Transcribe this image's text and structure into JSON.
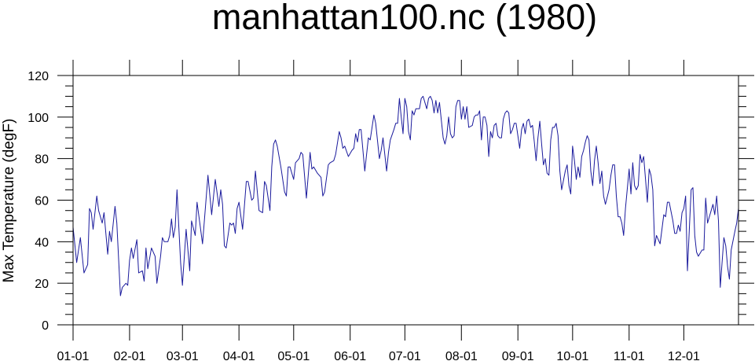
{
  "chart_data": {
    "type": "line",
    "title": "manhattan100.nc (1980)",
    "xlabel": "",
    "ylabel": "Max Temperature (degF)",
    "ylim": [
      0,
      120
    ],
    "yticks": [
      "0",
      "20",
      "40",
      "60",
      "80",
      "100",
      "120"
    ],
    "y_minor_step": 5,
    "xlim": [
      "1980-01-01",
      "1980-12-31"
    ],
    "xticks": [
      "01-01",
      "02-01",
      "03-01",
      "04-01",
      "05-01",
      "06-01",
      "07-01",
      "08-01",
      "09-01",
      "10-01",
      "11-01",
      "12-01"
    ],
    "grid": false,
    "line_color": "#1a1a9c",
    "series": [
      {
        "points": [
          [
            "01-01",
            47
          ],
          [
            "01-03",
            30
          ],
          [
            "01-05",
            42
          ],
          [
            "01-07",
            25
          ],
          [
            "01-09",
            29
          ],
          [
            "01-10",
            56
          ],
          [
            "01-11",
            54
          ],
          [
            "01-12",
            46
          ],
          [
            "01-14",
            62
          ],
          [
            "01-15",
            55
          ],
          [
            "01-17",
            49
          ],
          [
            "01-18",
            54
          ],
          [
            "01-20",
            34
          ],
          [
            "01-21",
            45
          ],
          [
            "01-22",
            40
          ],
          [
            "01-24",
            57
          ],
          [
            "01-25",
            49
          ],
          [
            "01-27",
            14
          ],
          [
            "01-28",
            18
          ],
          [
            "01-30",
            20
          ],
          [
            "01-31",
            19
          ],
          [
            "02-01",
            31
          ],
          [
            "02-02",
            37
          ],
          [
            "02-03",
            32
          ],
          [
            "02-05",
            41
          ],
          [
            "02-06",
            25
          ],
          [
            "02-08",
            26
          ],
          [
            "02-09",
            21
          ],
          [
            "02-10",
            37
          ],
          [
            "02-11",
            27
          ],
          [
            "02-13",
            37
          ],
          [
            "02-15",
            33
          ],
          [
            "02-16",
            20
          ],
          [
            "02-18",
            33
          ],
          [
            "02-19",
            42
          ],
          [
            "02-20",
            40
          ],
          [
            "02-22",
            40
          ],
          [
            "02-23",
            43
          ],
          [
            "02-24",
            51
          ],
          [
            "02-25",
            42
          ],
          [
            "02-26",
            47
          ],
          [
            "02-27",
            65
          ],
          [
            "02-28",
            47
          ],
          [
            "02-29",
            30
          ],
          [
            "03-01",
            19
          ],
          [
            "03-03",
            46
          ],
          [
            "03-05",
            26
          ],
          [
            "03-06",
            50
          ],
          [
            "03-08",
            43
          ],
          [
            "03-09",
            59
          ],
          [
            "03-12",
            39
          ],
          [
            "03-15",
            72
          ],
          [
            "03-17",
            53
          ],
          [
            "03-19",
            70
          ],
          [
            "03-21",
            57
          ],
          [
            "03-22",
            65
          ],
          [
            "03-23",
            58
          ],
          [
            "03-24",
            38
          ],
          [
            "03-25",
            37
          ],
          [
            "03-27",
            49
          ],
          [
            "03-28",
            48
          ],
          [
            "03-29",
            49
          ],
          [
            "03-30",
            44
          ],
          [
            "03-31",
            56
          ],
          [
            "04-01",
            59
          ],
          [
            "04-03",
            46
          ],
          [
            "04-05",
            69
          ],
          [
            "04-06",
            69
          ],
          [
            "04-08",
            60
          ],
          [
            "04-09",
            61
          ],
          [
            "04-10",
            74
          ],
          [
            "04-12",
            55
          ],
          [
            "04-14",
            54
          ],
          [
            "04-15",
            69
          ],
          [
            "04-16",
            67
          ],
          [
            "04-18",
            55
          ],
          [
            "04-19",
            76
          ],
          [
            "04-20",
            87
          ],
          [
            "04-21",
            89
          ],
          [
            "04-22",
            86
          ],
          [
            "04-24",
            76
          ],
          [
            "04-26",
            64
          ],
          [
            "04-27",
            62
          ],
          [
            "04-28",
            76
          ],
          [
            "04-29",
            76
          ],
          [
            "05-01",
            70
          ],
          [
            "05-02",
            78
          ],
          [
            "05-04",
            80
          ],
          [
            "05-05",
            83
          ],
          [
            "05-06",
            82
          ],
          [
            "05-08",
            61
          ],
          [
            "05-10",
            83
          ],
          [
            "05-11",
            75
          ],
          [
            "05-12",
            76
          ],
          [
            "05-14",
            73
          ],
          [
            "05-16",
            71
          ],
          [
            "05-17",
            62
          ],
          [
            "05-18",
            64
          ],
          [
            "05-20",
            77
          ],
          [
            "05-21",
            78
          ],
          [
            "05-23",
            79
          ],
          [
            "05-24",
            82
          ],
          [
            "05-26",
            93
          ],
          [
            "05-27",
            90
          ],
          [
            "05-28",
            85
          ],
          [
            "05-29",
            86
          ],
          [
            "05-31",
            81
          ],
          [
            "06-02",
            84
          ],
          [
            "06-03",
            85
          ],
          [
            "06-04",
            92
          ],
          [
            "06-05",
            88
          ],
          [
            "06-06",
            94
          ],
          [
            "06-07",
            94
          ],
          [
            "06-09",
            74
          ],
          [
            "06-10",
            82
          ],
          [
            "06-11",
            90
          ],
          [
            "06-12",
            89
          ],
          [
            "06-14",
            101
          ],
          [
            "06-15",
            97
          ],
          [
            "06-17",
            80
          ],
          [
            "06-18",
            84
          ],
          [
            "06-19",
            90
          ],
          [
            "06-21",
            74
          ],
          [
            "06-22",
            83
          ],
          [
            "06-23",
            89
          ],
          [
            "06-25",
            94
          ],
          [
            "06-26",
            97
          ],
          [
            "06-27",
            97
          ],
          [
            "06-28",
            109
          ],
          [
            "06-29",
            100
          ],
          [
            "06-30",
            92
          ],
          [
            "07-01",
            109
          ],
          [
            "07-02",
            105
          ],
          [
            "07-03",
            93
          ],
          [
            "07-04",
            89
          ],
          [
            "07-05",
            103
          ],
          [
            "07-06",
            101
          ],
          [
            "07-07",
            104
          ],
          [
            "07-09",
            104
          ],
          [
            "07-10",
            109
          ],
          [
            "07-11",
            110
          ],
          [
            "07-13",
            104
          ],
          [
            "07-14",
            109
          ],
          [
            "07-15",
            110
          ],
          [
            "07-16",
            108
          ],
          [
            "07-17",
            102
          ],
          [
            "07-18",
            108
          ],
          [
            "07-19",
            102
          ],
          [
            "07-20",
            107
          ],
          [
            "07-22",
            90
          ],
          [
            "07-23",
            87
          ],
          [
            "07-24",
            91
          ],
          [
            "07-25",
            100
          ],
          [
            "07-26",
            92
          ],
          [
            "07-27",
            90
          ],
          [
            "07-28",
            91
          ],
          [
            "07-29",
            105
          ],
          [
            "07-30",
            108
          ],
          [
            "07-31",
            108
          ],
          [
            "08-01",
            99
          ],
          [
            "08-02",
            105
          ],
          [
            "08-03",
            99
          ],
          [
            "08-04",
            105
          ],
          [
            "08-05",
            95
          ],
          [
            "08-07",
            96
          ],
          [
            "08-08",
            100
          ],
          [
            "08-09",
            101
          ],
          [
            "08-10",
            101
          ],
          [
            "08-11",
            103
          ],
          [
            "08-12",
            89
          ],
          [
            "08-13",
            100
          ],
          [
            "08-14",
            100
          ],
          [
            "08-15",
            96
          ],
          [
            "08-16",
            81
          ],
          [
            "08-17",
            93
          ],
          [
            "08-18",
            90
          ],
          [
            "08-19",
            96
          ],
          [
            "08-20",
            97
          ],
          [
            "08-21",
            91
          ],
          [
            "08-22",
            90
          ],
          [
            "08-23",
            90
          ],
          [
            "08-24",
            99
          ],
          [
            "08-25",
            102
          ],
          [
            "08-26",
            103
          ],
          [
            "08-27",
            102
          ],
          [
            "08-28",
            92
          ],
          [
            "08-29",
            94
          ],
          [
            "08-30",
            97
          ],
          [
            "08-31",
            97
          ],
          [
            "09-02",
            85
          ],
          [
            "09-03",
            94
          ],
          [
            "09-04",
            97
          ],
          [
            "09-05",
            92
          ],
          [
            "09-06",
            98
          ],
          [
            "09-07",
            99
          ],
          [
            "09-08",
            95
          ],
          [
            "09-09",
            96
          ],
          [
            "09-10",
            88
          ],
          [
            "09-11",
            79
          ],
          [
            "09-12",
            90
          ],
          [
            "09-13",
            98
          ],
          [
            "09-14",
            87
          ],
          [
            "09-15",
            77
          ],
          [
            "09-16",
            80
          ],
          [
            "09-17",
            73
          ],
          [
            "09-18",
            72
          ],
          [
            "09-19",
            89
          ],
          [
            "09-20",
            95
          ],
          [
            "09-21",
            95
          ],
          [
            "09-22",
            97
          ],
          [
            "09-23",
            91
          ],
          [
            "09-24",
            74
          ],
          [
            "09-25",
            65
          ],
          [
            "09-27",
            74
          ],
          [
            "09-28",
            77
          ],
          [
            "09-29",
            67
          ],
          [
            "09-30",
            63
          ],
          [
            "10-01",
            86
          ],
          [
            "10-02",
            79
          ],
          [
            "10-03",
            70
          ],
          [
            "10-04",
            76
          ],
          [
            "10-05",
            71
          ],
          [
            "10-06",
            81
          ],
          [
            "10-07",
            84
          ],
          [
            "10-08",
            88
          ],
          [
            "10-09",
            91
          ],
          [
            "10-10",
            89
          ],
          [
            "10-11",
            74
          ],
          [
            "10-12",
            67
          ],
          [
            "10-13",
            79
          ],
          [
            "10-14",
            86
          ],
          [
            "10-15",
            78
          ],
          [
            "10-16",
            68
          ],
          [
            "10-17",
            74
          ],
          [
            "10-18",
            62
          ],
          [
            "10-19",
            58
          ],
          [
            "10-21",
            65
          ],
          [
            "10-22",
            72
          ],
          [
            "10-23",
            77
          ],
          [
            "10-24",
            77
          ],
          [
            "10-25",
            62
          ],
          [
            "10-26",
            52
          ],
          [
            "10-27",
            52
          ],
          [
            "10-28",
            49
          ],
          [
            "10-29",
            43
          ],
          [
            "10-30",
            56
          ],
          [
            "11-01",
            75
          ],
          [
            "11-02",
            63
          ],
          [
            "11-03",
            78
          ],
          [
            "11-04",
            67
          ],
          [
            "11-05",
            65
          ],
          [
            "11-06",
            67
          ],
          [
            "11-07",
            82
          ],
          [
            "11-08",
            78
          ],
          [
            "11-09",
            81
          ],
          [
            "11-11",
            59
          ],
          [
            "11-12",
            75
          ],
          [
            "11-13",
            72
          ],
          [
            "11-14",
            65
          ],
          [
            "11-15",
            38
          ],
          [
            "11-16",
            43
          ],
          [
            "11-18",
            39
          ],
          [
            "11-20",
            53
          ],
          [
            "11-21",
            52
          ],
          [
            "11-22",
            59
          ],
          [
            "11-23",
            59
          ],
          [
            "11-25",
            50
          ],
          [
            "11-26",
            44
          ],
          [
            "11-27",
            44
          ],
          [
            "11-28",
            48
          ],
          [
            "11-29",
            45
          ],
          [
            "11-30",
            54
          ],
          [
            "12-01",
            56
          ],
          [
            "12-02",
            62
          ],
          [
            "12-03",
            26
          ],
          [
            "12-05",
            65
          ],
          [
            "12-06",
            66
          ],
          [
            "12-07",
            43
          ],
          [
            "12-08",
            35
          ],
          [
            "12-09",
            33
          ],
          [
            "12-11",
            36
          ],
          [
            "12-12",
            36
          ],
          [
            "12-13",
            61
          ],
          [
            "12-14",
            49
          ],
          [
            "12-16",
            55
          ],
          [
            "12-17",
            58
          ],
          [
            "12-18",
            53
          ],
          [
            "12-19",
            62
          ],
          [
            "12-20",
            50
          ],
          [
            "12-21",
            18
          ],
          [
            "12-23",
            42
          ],
          [
            "12-24",
            38
          ],
          [
            "12-25",
            28
          ],
          [
            "12-26",
            22
          ],
          [
            "12-27",
            36
          ],
          [
            "12-29",
            45
          ],
          [
            "12-30",
            49
          ],
          [
            "12-31",
            56
          ]
        ]
      }
    ]
  }
}
